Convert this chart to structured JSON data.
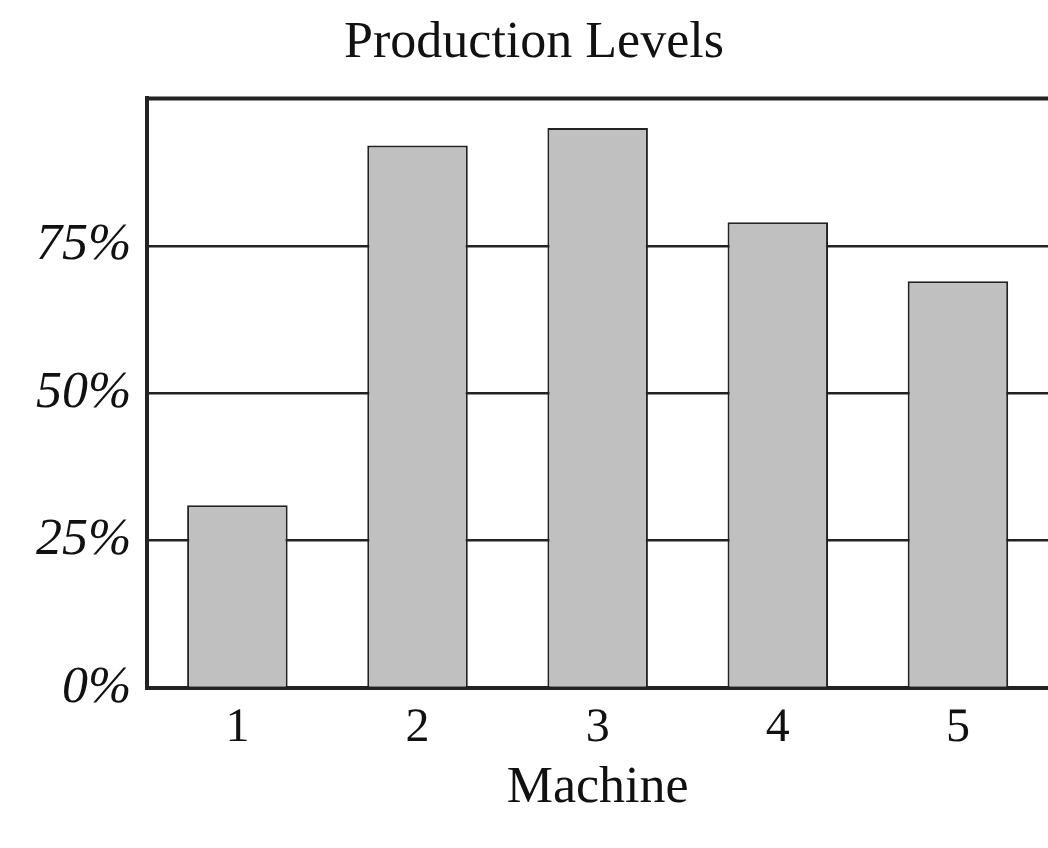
{
  "chart_data": {
    "type": "bar",
    "title": "Production Levels",
    "xlabel": "Machine",
    "categories": [
      "1",
      "2",
      "3",
      "4",
      "5"
    ],
    "values": [
      31,
      92,
      95,
      79,
      69
    ],
    "color": "#c0c0c0",
    "ylim": [
      0,
      100
    ],
    "yticks": [
      {
        "value": 0,
        "label": "0%"
      },
      {
        "value": 25,
        "label": "25%"
      },
      {
        "value": 50,
        "label": "50%"
      },
      {
        "value": 75,
        "label": "75%"
      }
    ],
    "grid": "y",
    "legend": false
  }
}
